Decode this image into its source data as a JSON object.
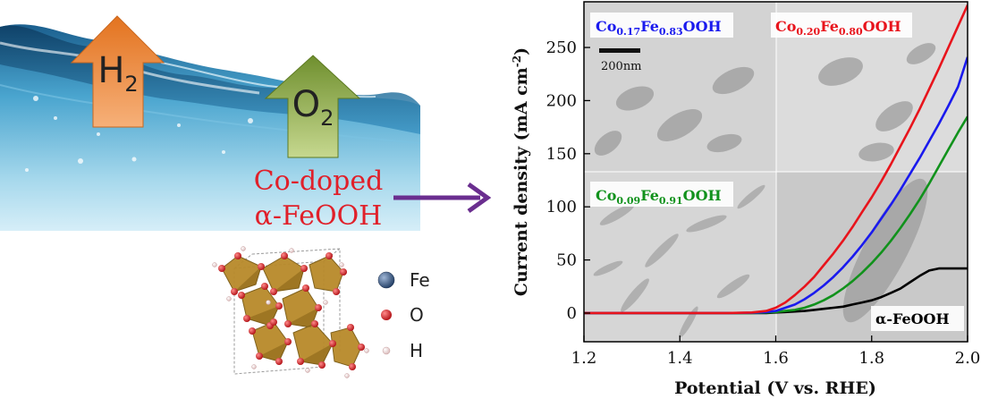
{
  "left_panel": {
    "gas_h2": {
      "main": "H",
      "sub": "2"
    },
    "gas_o2": {
      "main": "O",
      "sub": "2"
    },
    "catalyst_label": {
      "line1": "Co-doped",
      "line2": "α-FeOOH"
    },
    "legend": {
      "fe": "Fe",
      "o": "O",
      "h": "H"
    },
    "colors": {
      "h2_arrow": "#e98a3e",
      "o2_arrow": "#87a446",
      "catalyst_text": "#e0202a",
      "process_arrow": "#6a2e8f",
      "fe_atom": "#27456d",
      "o_atom": "#d0161b",
      "h_atom": "#f1dcdc",
      "octahedra": "#b88a2a"
    }
  },
  "chart_data": {
    "type": "line",
    "xlabel": "Potential (V vs. RHE)",
    "ylabel": "Current density (mA cm",
    "ylabel_sup": "-2",
    "ylabel_close": ")",
    "xlim": [
      1.2,
      2.0
    ],
    "ylim": [
      -27,
      293
    ],
    "xticks": [
      "1.2",
      "1.4",
      "1.6",
      "1.8",
      "2.0"
    ],
    "yticks": [
      "0",
      "50",
      "100",
      "150",
      "200",
      "250"
    ],
    "x": [
      1.2,
      1.3,
      1.4,
      1.5,
      1.55,
      1.58,
      1.6,
      1.62,
      1.64,
      1.66,
      1.68,
      1.7,
      1.72,
      1.74,
      1.76,
      1.78,
      1.8,
      1.82,
      1.84,
      1.86,
      1.88,
      1.9,
      1.92,
      1.94,
      1.96,
      1.98,
      2.0
    ],
    "series": [
      {
        "name": "Co0.20Fe0.80OOH",
        "color": "#e8141c",
        "values": [
          0,
          0,
          0,
          0,
          0.5,
          2,
          5,
          10,
          17,
          25,
          34,
          45,
          56,
          68,
          81,
          95,
          109,
          124,
          140,
          157,
          174,
          192,
          211,
          230,
          250,
          270,
          290
        ]
      },
      {
        "name": "Co0.17Fe0.83OOH",
        "color": "#1a1aee",
        "values": [
          0,
          0,
          0,
          0,
          0.3,
          1,
          2,
          5,
          8,
          13,
          19,
          26,
          34,
          43,
          53,
          64,
          76,
          89,
          102,
          116,
          131,
          146,
          162,
          178,
          195,
          213,
          241
        ]
      },
      {
        "name": "Co0.09Fe0.91OOH",
        "color": "#11921c",
        "values": [
          0,
          0,
          0,
          0,
          0,
          0.5,
          1,
          2,
          3,
          5,
          8,
          12,
          17,
          23,
          30,
          38,
          47,
          57,
          68,
          80,
          93,
          107,
          122,
          138,
          154,
          170,
          185
        ]
      },
      {
        "name": "α-FeOOH",
        "color": "#000000",
        "values": [
          0,
          0,
          0,
          0,
          0,
          0,
          0.5,
          1,
          1.5,
          2,
          3,
          4,
          5,
          6,
          8,
          10,
          12,
          15,
          19,
          23,
          29,
          35,
          40,
          42,
          42,
          42,
          42
        ]
      }
    ],
    "inset_scale_bar": "200nm",
    "inset_labels": [
      {
        "pre": "Co",
        "s1": "0.17",
        "mid": "Fe",
        "s2": "0.83",
        "post": "OOH",
        "color": "#1a1aee"
      },
      {
        "pre": "Co",
        "s1": "0.20",
        "mid": "Fe",
        "s2": "0.80",
        "post": "OOH",
        "color": "#e8141c"
      },
      {
        "pre": "Co",
        "s1": "0.09",
        "mid": "Fe",
        "s2": "0.91",
        "post": "OOH",
        "color": "#11921c"
      }
    ],
    "fe_label": "α-FeOOH"
  }
}
